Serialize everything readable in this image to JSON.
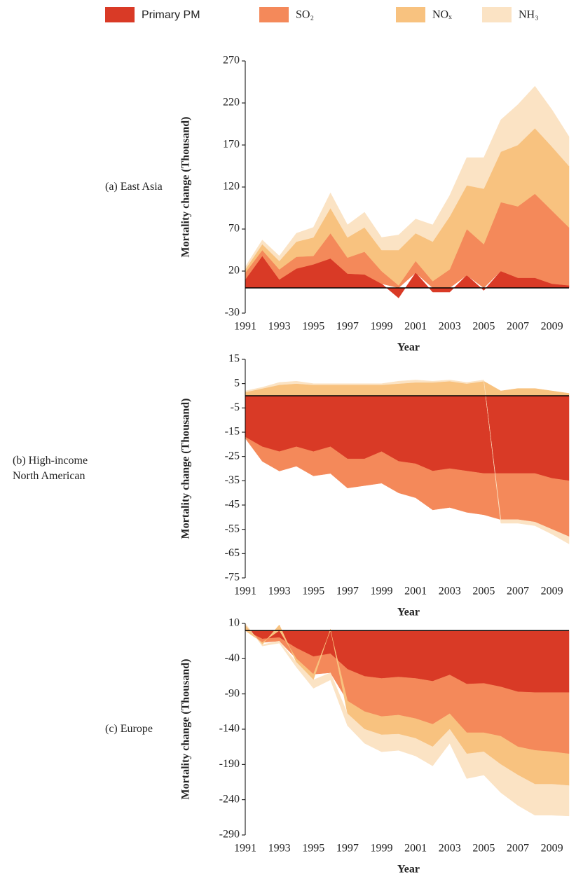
{
  "chart_data": [
    {
      "type": "area",
      "stacked": true,
      "panel_label": [
        "(a) East Asia"
      ],
      "xlabel": "Year",
      "ylabel": "Mortality change (Thousand)",
      "x": [
        1991,
        1992,
        1993,
        1994,
        1995,
        1996,
        1997,
        1998,
        1999,
        2000,
        2001,
        2002,
        2003,
        2004,
        2005,
        2006,
        2007,
        2008,
        2009,
        2010
      ],
      "xlim": [
        1991,
        2010
      ],
      "xticks": [
        1991,
        1993,
        1995,
        1997,
        1999,
        2001,
        2003,
        2005,
        2007,
        2009
      ],
      "ylim": [
        -30,
        270
      ],
      "yticks": [
        270,
        220,
        170,
        120,
        70,
        20,
        -30
      ],
      "series": [
        {
          "name": "Primary PM",
          "color": "#d93a26",
          "values": [
            10,
            38,
            10,
            23,
            28,
            35,
            17,
            16,
            5,
            -12,
            18,
            -5,
            -5,
            15,
            -3,
            20,
            12,
            12,
            5,
            3
          ]
        },
        {
          "name": "SO₂",
          "color": "#f4895a",
          "values": [
            8,
            7,
            12,
            14,
            10,
            30,
            19,
            27,
            15,
            3,
            14,
            8,
            22,
            55,
            52,
            82,
            85,
            100,
            87,
            69
          ]
        },
        {
          "name": "NOₓ",
          "color": "#f8c27f",
          "values": [
            4,
            7,
            10,
            18,
            22,
            30,
            24,
            29,
            25,
            42,
            33,
            47,
            63,
            52,
            66,
            60,
            73,
            78,
            76,
            73
          ]
        },
        {
          "name": "NH₃",
          "color": "#fbe3c4",
          "values": [
            3,
            5,
            6,
            10,
            12,
            18,
            15,
            18,
            15,
            18,
            17,
            20,
            25,
            33,
            37,
            38,
            48,
            50,
            44,
            35
          ]
        }
      ]
    },
    {
      "type": "area",
      "stacked": true,
      "panel_label": [
        "(b) High-income",
        "North American"
      ],
      "xlabel": "Year",
      "ylabel": "Mortality change (Thousand)",
      "x": [
        1991,
        1992,
        1993,
        1994,
        1995,
        1996,
        1997,
        1998,
        1999,
        2000,
        2001,
        2002,
        2003,
        2004,
        2005,
        2006,
        2007,
        2008,
        2009,
        2010
      ],
      "xlim": [
        1991,
        2010
      ],
      "xticks": [
        1991,
        1993,
        1995,
        1997,
        1999,
        2001,
        2003,
        2005,
        2007,
        2009
      ],
      "ylim": [
        -75,
        15
      ],
      "yticks": [
        15,
        5,
        -5,
        -15,
        -25,
        -35,
        -45,
        -55,
        -65,
        -75
      ],
      "series": [
        {
          "name": "Primary PM",
          "color": "#d93a26",
          "values": [
            -17,
            -21,
            -23,
            -21,
            -23,
            -21,
            -26,
            -26,
            -23,
            -27,
            -28,
            -31,
            -30,
            -31,
            -32,
            -32,
            -32,
            -32,
            -34,
            -35
          ]
        },
        {
          "name": "SO₂",
          "color": "#f4895a",
          "values": [
            -0.5,
            -6,
            -8,
            -8,
            -10,
            -11,
            -12,
            -11,
            -13,
            -13,
            -14,
            -16,
            -16,
            -17,
            -17,
            -19,
            -19,
            -20,
            -21,
            -23
          ]
        },
        {
          "name": "NOₓ",
          "color": "#f8c27f",
          "values": [
            1.5,
            3,
            4.5,
            5,
            4.5,
            4.5,
            4.5,
            4.5,
            4.5,
            5,
            5.5,
            5.5,
            6,
            5,
            6,
            2,
            3,
            3,
            2,
            1
          ]
        },
        {
          "name": "NH₃",
          "color": "#fbe3c4",
          "values": [
            0.5,
            0.5,
            1,
            1,
            0.5,
            0.5,
            0.5,
            0.5,
            0.5,
            1,
            1,
            0.5,
            0.5,
            0.5,
            0.5,
            -1.5,
            -1.5,
            -1.5,
            -2,
            -3
          ]
        }
      ]
    },
    {
      "type": "area",
      "stacked": true,
      "panel_label": [
        "(c) Europe"
      ],
      "xlabel": "Year",
      "ylabel": "Mortality change (Thousand)",
      "x": [
        1991,
        1992,
        1993,
        1994,
        1995,
        1996,
        1997,
        1998,
        1999,
        2000,
        2001,
        2002,
        2003,
        2004,
        2005,
        2006,
        2007,
        2008,
        2009,
        2010
      ],
      "xlim": [
        1991,
        2010
      ],
      "xticks": [
        1991,
        1993,
        1995,
        1997,
        1999,
        2001,
        2003,
        2005,
        2007,
        2009
      ],
      "ylim": [
        -290,
        10
      ],
      "yticks": [
        10,
        -40,
        -90,
        -140,
        -190,
        -240,
        -290
      ],
      "series": [
        {
          "name": "Primary PM",
          "color": "#d93a26",
          "values": [
            0,
            -12,
            -10,
            -25,
            -37,
            -33,
            -55,
            -65,
            -68,
            -66,
            -68,
            -72,
            -63,
            -76,
            -75,
            -80,
            -87,
            -88,
            -88,
            -88
          ]
        },
        {
          "name": "SO₂",
          "color": "#f4895a",
          "values": [
            0,
            -5,
            -5,
            -15,
            -25,
            -27,
            -45,
            -50,
            -54,
            -54,
            -57,
            -61,
            -55,
            -69,
            -70,
            -70,
            -78,
            -82,
            -84,
            -87
          ]
        },
        {
          "name": "NOₓ",
          "color": "#f8c27f",
          "values": [
            8,
            -3,
            8,
            -5,
            -8,
            2,
            -18,
            -25,
            -26,
            -27,
            -28,
            -32,
            -22,
            -30,
            -27,
            -40,
            -40,
            -48,
            -46,
            -45
          ]
        },
        {
          "name": "NH₃",
          "color": "#fbe3c4",
          "values": [
            2,
            -2,
            -3,
            -7,
            -12,
            -10,
            -17,
            -20,
            -24,
            -23,
            -25,
            -27,
            -20,
            -35,
            -33,
            -40,
            -43,
            -44,
            -44,
            -43
          ]
        }
      ]
    }
  ]
}
